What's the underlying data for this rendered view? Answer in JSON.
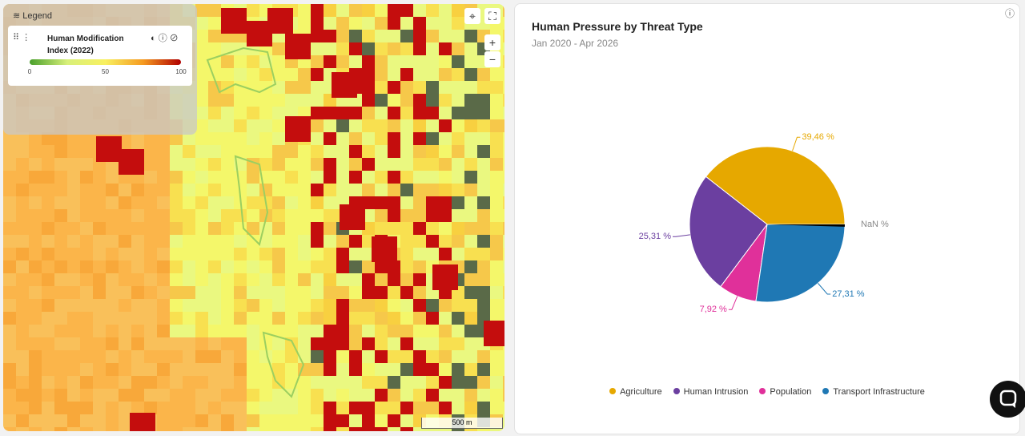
{
  "map": {
    "legend_title": "Legend",
    "layer_name": "Human Modification Index (2022)",
    "scale_ticks": [
      0,
      50,
      100
    ],
    "scale_bar": "500 m"
  },
  "chart_data": {
    "type": "pie",
    "title": "Human Pressure by Threat Type",
    "subtitle": "Jan 2020 - Apr 2026",
    "categories": [
      "Agriculture",
      "Human Intrusion",
      "Population",
      "Transport Infrastructure"
    ],
    "values": [
      39.46,
      25.31,
      7.92,
      27.31
    ],
    "value_labels": [
      "39,46 %",
      "25,31 %",
      "7,92 %",
      "27,31 %"
    ],
    "colors": [
      "#e6a800",
      "#6b3fa0",
      "#e0309a",
      "#1f78b4"
    ],
    "annotation": "NaN %"
  }
}
